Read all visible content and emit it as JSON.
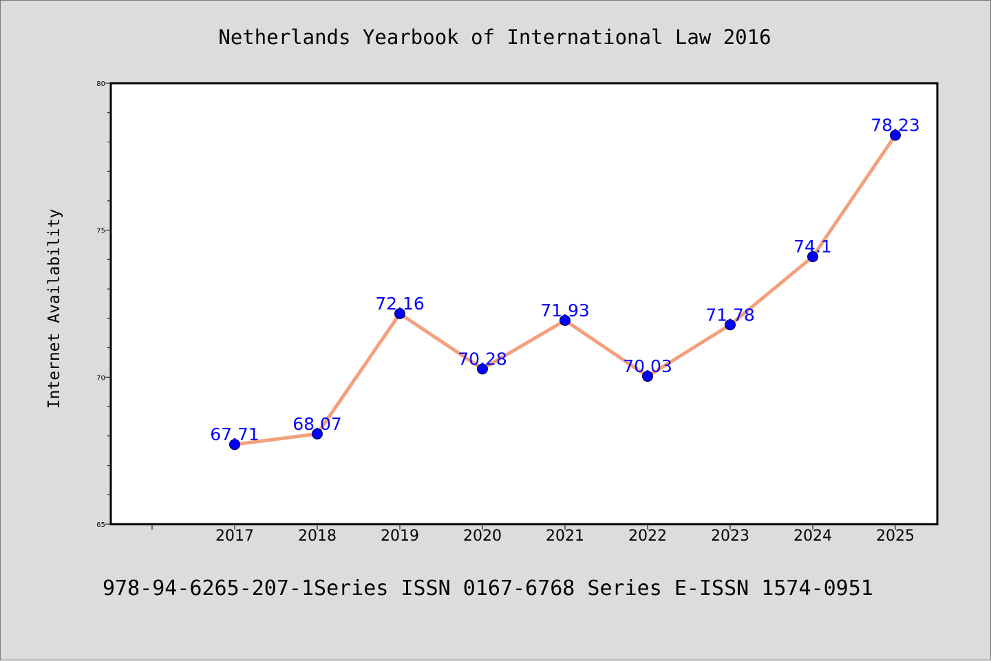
{
  "chart_data": {
    "type": "line",
    "title": "Netherlands Yearbook of International Law 2016",
    "caption": "978-94-6265-207-1Series ISSN 0167-6768 Series E-ISSN 1574-0951",
    "xlabel": "",
    "ylabel": "Internet Availability",
    "x": [
      "2017",
      "2018",
      "2019",
      "2020",
      "2021",
      "2022",
      "2023",
      "2024",
      "2025"
    ],
    "series": [
      {
        "values": [
          67.71,
          68.07,
          72.16,
          70.28,
          71.93,
          70.03,
          71.78,
          74.1,
          78.23
        ],
        "labels": [
          "67.71",
          "68.07",
          "72.16",
          "70.28",
          "71.93",
          "70.03",
          "71.78",
          "74.1",
          "78.23"
        ]
      }
    ],
    "ylim": [
      65,
      80
    ],
    "yticks": [
      "65",
      "70",
      "75",
      "80"
    ],
    "grid": false,
    "legend": "none",
    "colors": {
      "line": "#f4a07c",
      "marker": "#0000ff",
      "label": "#0000ff",
      "background": "#dcdcdc",
      "plot_background": "#ffffff"
    }
  }
}
